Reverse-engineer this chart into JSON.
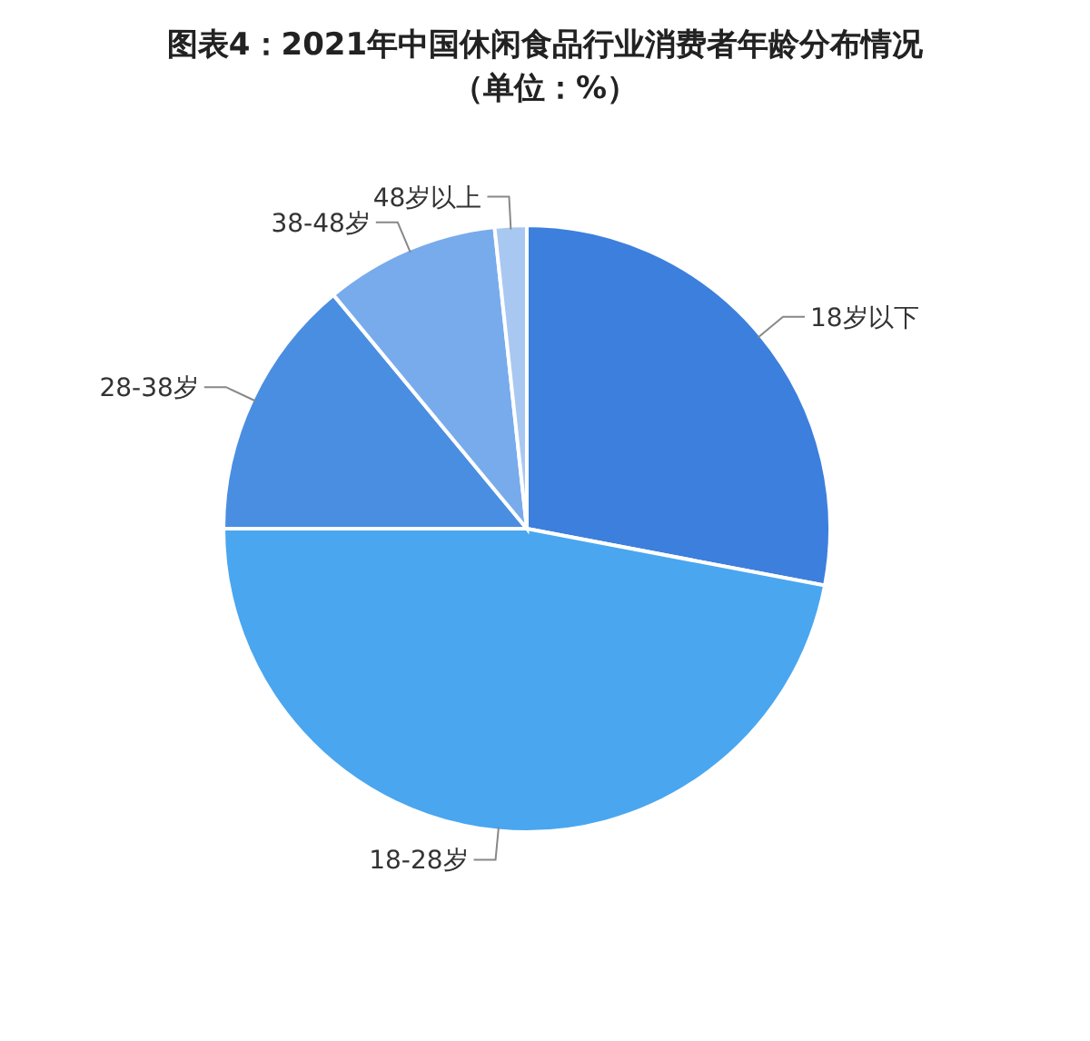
{
  "chart_data": {
    "type": "pie",
    "title": "图表4：2021年中国休闲食品行业消费者年龄分布情况",
    "subtitle": "（单位：%）",
    "categories": [
      "18岁以下",
      "18-28岁",
      "28-38岁",
      "38-48岁",
      "48岁以上"
    ],
    "values": [
      28,
      47,
      14,
      9.3,
      1.7
    ],
    "colors": [
      "#3d7fdd",
      "#4aa6ef",
      "#4a8ee2",
      "#78abec",
      "#a9c8f1"
    ],
    "legend": false
  }
}
